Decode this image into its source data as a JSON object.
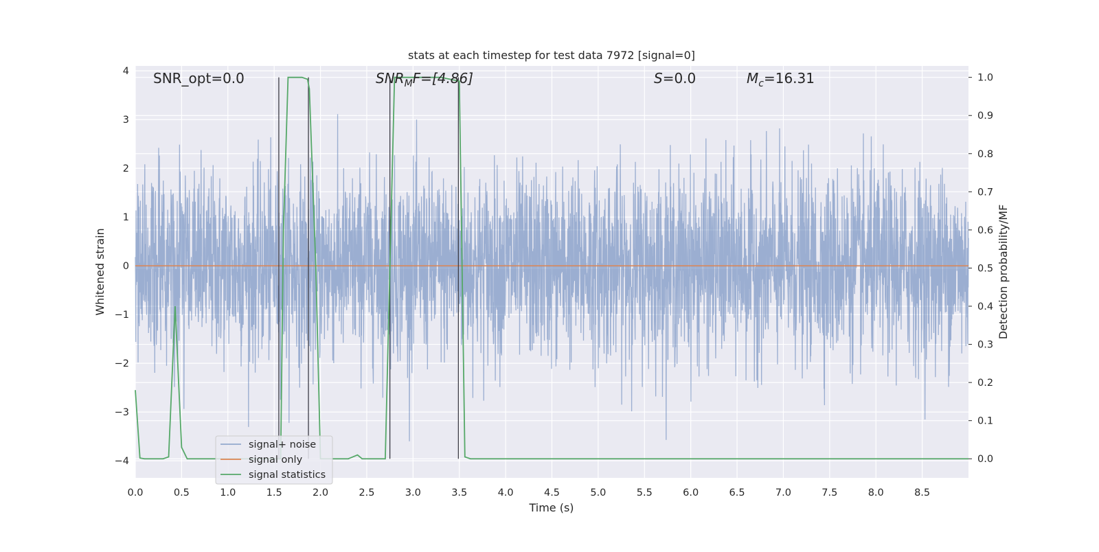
{
  "chart_data": {
    "type": "line",
    "title": "stats at each timestep for test data 7972 [signal=0]",
    "xlabel": "Time (s)",
    "ylabel": "Whitened strain",
    "y2label": "Detection probability/MF",
    "xlim": [
      0.0,
      9.0
    ],
    "ylim": [
      -4.35,
      4.1
    ],
    "y2lim": [
      -0.05,
      1.03
    ],
    "xticks": [
      "0.0",
      "0.5",
      "1.0",
      "1.5",
      "2.0",
      "2.5",
      "3.0",
      "3.5",
      "4.0",
      "4.5",
      "5.0",
      "5.5",
      "6.0",
      "6.5",
      "7.0",
      "7.5",
      "8.0",
      "8.5"
    ],
    "yticks": [
      "4",
      "3",
      "2",
      "1",
      "0",
      "−1",
      "−2",
      "−3",
      "−4"
    ],
    "y2ticks": [
      "1.0",
      "0.9",
      "0.8",
      "0.7",
      "0.6",
      "0.5",
      "0.4",
      "0.3",
      "0.2",
      "0.1",
      "0.0"
    ],
    "grid": true,
    "legend_position": "lower-left",
    "annotations": {
      "snr_opt": "SNR_opt=0.0",
      "snr_mf_sym": "SNR",
      "snr_mf_sub": "M",
      "snr_mf_rest": "F=[4.86]",
      "s_sym": "S",
      "s_rest": "=0.0",
      "mc_sym": "M",
      "mc_sub": "c",
      "mc_rest": "=16.31"
    },
    "colors": {
      "background": "#eaeaf2",
      "grid": "#ffffff",
      "noise": "#4c72b0",
      "signal": "#dd8452",
      "statistics": "#55a868",
      "marker_lines": "#3c3c46"
    },
    "series": [
      {
        "name": "signal+ noise",
        "kind": "random-noise",
        "sigma": 0.95,
        "duration_s": 9.0,
        "description_values": "whitened noise, roughly within -3.6 to 3.8"
      },
      {
        "name": "signal only",
        "x": [
          0.0,
          9.0
        ],
        "y": [
          0.0,
          0.0
        ]
      },
      {
        "name": "signal statistics",
        "axis": "right",
        "x": [
          0.0,
          0.05,
          0.1,
          0.2,
          0.3,
          0.36,
          0.43,
          0.5,
          0.56,
          1.0,
          1.5,
          1.57,
          1.6,
          1.65,
          1.7,
          1.8,
          1.86,
          1.88,
          1.95,
          2.0,
          2.1,
          2.3,
          2.4,
          2.45,
          2.5,
          2.7,
          2.74,
          2.8,
          2.9,
          3.0,
          3.3,
          3.5,
          3.56,
          3.62,
          4.0,
          5.0,
          6.0,
          7.0,
          8.0,
          9.0
        ],
        "y": [
          0.18,
          0.002,
          0.0,
          0.0,
          0.0,
          0.005,
          0.4,
          0.03,
          0.0,
          0.0,
          0.0,
          0.0,
          0.6,
          1.0,
          1.0,
          1.0,
          0.995,
          0.97,
          0.5,
          0.0,
          0.0,
          0.0,
          0.01,
          0.0,
          0.0,
          0.0,
          0.4,
          1.0,
          1.0,
          1.0,
          1.0,
          0.99,
          0.005,
          0.0,
          0.0,
          0.0,
          0.0,
          0.0,
          0.0,
          0.0
        ]
      }
    ],
    "vertical_markers": [
      {
        "x": 1.55,
        "y_top": 1.0,
        "y_bottom": 0.0
      },
      {
        "x": 1.87,
        "y_top": 1.0,
        "y_bottom": 0.0
      },
      {
        "x": 2.75,
        "y_top": 1.0,
        "y_bottom": 0.0
      },
      {
        "x": 3.49,
        "y_top": 1.0,
        "y_bottom": 0.0
      }
    ]
  }
}
